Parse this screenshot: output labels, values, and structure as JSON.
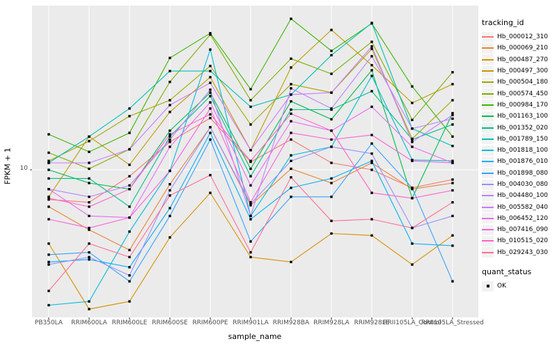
{
  "figure": {
    "background": "#FFFFFF",
    "panel_background": "#EBEBEB",
    "gridline_color": "#FFFFFF",
    "tick_color": "#333333",
    "tick_label_color": "#4D4D4D",
    "point_color": "#000000"
  },
  "legend": {
    "tracking_title": "tracking_id",
    "quant_title": "quant_status",
    "quant_items": [
      {
        "label": "OK",
        "marker": "black-square"
      }
    ]
  },
  "chart_data": {
    "type": "line",
    "title": "",
    "xlabel": "sample_name",
    "ylabel": "FPKM + 1",
    "x_categories": [
      "PB350LA",
      "RRIM600LA",
      "RRIM600LE",
      "RRIM600SE",
      "RRIM600PE",
      "RRIM901LA",
      "RRIM928BA",
      "RRIM928LA",
      "RRIM928LE",
      "RRII105LA_Control",
      "RRII105LA_Stressed"
    ],
    "y_scale": "log10",
    "y_tick_labels": [
      "10"
    ],
    "y_tick_values": [
      10
    ],
    "ylim": [
      2.4,
      48
    ],
    "grid": true,
    "legend_position": "right",
    "point_shape": "filled-square",
    "series": [
      {
        "name": "Hb_000012_310",
        "color": "#F8766D",
        "values": [
          7.5,
          7.3,
          9.4,
          13.1,
          16.5,
          10.8,
          13.4,
          10.7,
          10.0,
          8.4,
          9.1
        ]
      },
      {
        "name": "Hb_000069_210",
        "color": "#EA8331",
        "values": [
          7.0,
          5.6,
          4.6,
          8.7,
          15.1,
          7.1,
          10.1,
          8.8,
          10.7,
          8.3,
          8.8
        ]
      },
      {
        "name": "Hb_000487_270",
        "color": "#D89000",
        "values": [
          4.9,
          2.6,
          2.8,
          5.2,
          8.0,
          4.3,
          4.1,
          5.4,
          5.3,
          4.0,
          5.3
        ]
      },
      {
        "name": "Hb_000497_300",
        "color": "#C09B00",
        "values": [
          7.7,
          13.8,
          10.5,
          17.5,
          24.5,
          12.1,
          26.9,
          38.7,
          27.5,
          19.1,
          22.9
        ]
      },
      {
        "name": "Hb_000504_180",
        "color": "#A3A500",
        "values": [
          10.9,
          13.2,
          16.8,
          19.6,
          27.3,
          15.5,
          22.9,
          21.1,
          32.2,
          13.5,
          19.6
        ]
      },
      {
        "name": "Hb_000574_450",
        "color": "#7CAE00",
        "values": [
          11.8,
          10.1,
          12.2,
          23.4,
          37.0,
          19.6,
          29.3,
          25.3,
          34.5,
          16.2,
          25.7
        ]
      },
      {
        "name": "Hb_000984_170",
        "color": "#39B600",
        "values": [
          14.1,
          11.9,
          14.3,
          29.5,
          37.5,
          21.8,
          43.1,
          31.6,
          41.2,
          22.4,
          13.8
        ]
      },
      {
        "name": "Hb_001163_100",
        "color": "#00BB4E",
        "values": [
          10.0,
          8.8,
          8.3,
          14.6,
          21.1,
          10.1,
          19.4,
          16.3,
          26.2,
          7.6,
          17.3
        ]
      },
      {
        "name": "Hb_001352_020",
        "color": "#00C087",
        "values": [
          9.2,
          9.2,
          7.0,
          13.8,
          20.4,
          9.4,
          17.9,
          17.9,
          21.4,
          13.4,
          15.5
        ]
      },
      {
        "name": "Hb_001789_150",
        "color": "#00C0B2",
        "values": [
          10.7,
          13.8,
          18.1,
          26.0,
          26.0,
          18.4,
          20.7,
          30.3,
          41.4,
          14.9,
          12.6
        ]
      },
      {
        "name": "Hb_001818_100",
        "color": "#00BCD8",
        "values": [
          2.7,
          2.8,
          5.5,
          9.9,
          32.0,
          6.4,
          11.5,
          12.5,
          24.8,
          11.0,
          10.9
        ]
      },
      {
        "name": "Hb_001876_010",
        "color": "#00B0F6",
        "values": [
          4.1,
          4.2,
          3.9,
          6.9,
          14.3,
          6.2,
          8.4,
          9.2,
          10.9,
          4.9,
          4.8
        ]
      },
      {
        "name": "Hb_001898_080",
        "color": "#35A2FF",
        "values": [
          4.4,
          4.5,
          3.4,
          6.4,
          13.4,
          5.0,
          7.7,
          7.7,
          12.9,
          8.4,
          3.4
        ]
      },
      {
        "name": "Hb_004030_080",
        "color": "#9590FF",
        "values": [
          4.0,
          4.3,
          3.6,
          8.2,
          15.1,
          7.2,
          10.9,
          12.5,
          11.7,
          5.7,
          6.4
        ]
      },
      {
        "name": "Hb_004480_100",
        "color": "#B983FF",
        "values": [
          8.3,
          7.7,
          8.6,
          13.4,
          21.7,
          6.4,
          22.0,
          18.1,
          30.0,
          14.9,
          16.4
        ]
      },
      {
        "name": "Hb_005582_040",
        "color": "#CD79FF",
        "values": [
          10.7,
          10.7,
          12.2,
          18.7,
          23.2,
          12.1,
          20.7,
          21.1,
          33.0,
          13.1,
          17.0
        ]
      },
      {
        "name": "Hb_006452_120",
        "color": "#E76BF3",
        "values": [
          8.3,
          6.4,
          6.3,
          12.5,
          19.2,
          8.6,
          16.0,
          14.6,
          18.4,
          12.5,
          10.7
        ]
      },
      {
        "name": "Hb_007416_090",
        "color": "#FA62DB",
        "values": [
          6.2,
          5.7,
          6.3,
          9.9,
          18.1,
          7.3,
          14.3,
          13.4,
          14.0,
          10.9,
          10.7
        ]
      },
      {
        "name": "Hb_010515_020",
        "color": "#FF61C9",
        "values": [
          7.6,
          7.0,
          8.3,
          14.1,
          17.1,
          10.9,
          17.2,
          14.6,
          8.0,
          7.6,
          8.2
        ]
      },
      {
        "name": "Hb_029243_030",
        "color": "#FF6C91",
        "values": [
          3.1,
          4.9,
          4.3,
          7.8,
          9.5,
          4.5,
          9.3,
          6.1,
          6.2,
          5.7,
          7.3
        ]
      }
    ]
  }
}
